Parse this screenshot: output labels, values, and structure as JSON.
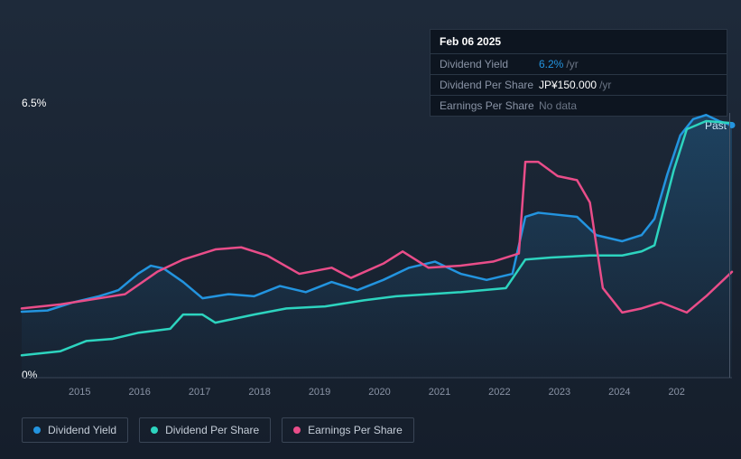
{
  "tooltip": {
    "date": "Feb 06 2025",
    "rows": [
      {
        "label": "Dividend Yield",
        "value": "6.2%",
        "unit": "/yr",
        "color": "blue"
      },
      {
        "label": "Dividend Per Share",
        "value": "JP¥150.000",
        "unit": "/yr",
        "color": "white"
      },
      {
        "label": "Earnings Per Share",
        "value": null,
        "nodata": "No data"
      }
    ]
  },
  "y_axis": {
    "max_label": "6.5%",
    "min_label": "0%",
    "max": 6.5,
    "min": 0
  },
  "past_label": "Past",
  "x_axis": {
    "ticks": [
      "2015",
      "2016",
      "2017",
      "2018",
      "2019",
      "2020",
      "2021",
      "2022",
      "2023",
      "2024",
      "202"
    ]
  },
  "legend": [
    {
      "name": "Dividend Yield",
      "color": "#2394df"
    },
    {
      "name": "Dividend Per Share",
      "color": "#2dd4bf"
    },
    {
      "name": "Earnings Per Share",
      "color": "#e94d89"
    }
  ],
  "chart": {
    "type": "line",
    "background": "#1a2332",
    "grid_color": "#2a3645",
    "line_width": 2.5,
    "xlim": [
      2014.2,
      2025.2
    ],
    "ylim": [
      0,
      6.5
    ],
    "series": {
      "dividend_yield": {
        "color": "#2394df",
        "fill_opacity": 0.15,
        "data": [
          [
            2014.2,
            1.62
          ],
          [
            2014.6,
            1.65
          ],
          [
            2015.0,
            1.85
          ],
          [
            2015.4,
            2.0
          ],
          [
            2015.7,
            2.15
          ],
          [
            2016.0,
            2.55
          ],
          [
            2016.2,
            2.75
          ],
          [
            2016.4,
            2.68
          ],
          [
            2016.7,
            2.35
          ],
          [
            2017.0,
            1.95
          ],
          [
            2017.4,
            2.05
          ],
          [
            2017.8,
            2.0
          ],
          [
            2018.2,
            2.25
          ],
          [
            2018.6,
            2.1
          ],
          [
            2019.0,
            2.35
          ],
          [
            2019.4,
            2.15
          ],
          [
            2019.8,
            2.4
          ],
          [
            2020.2,
            2.7
          ],
          [
            2020.6,
            2.85
          ],
          [
            2021.0,
            2.55
          ],
          [
            2021.4,
            2.4
          ],
          [
            2021.8,
            2.55
          ],
          [
            2022.0,
            3.95
          ],
          [
            2022.2,
            4.05
          ],
          [
            2022.5,
            4.0
          ],
          [
            2022.8,
            3.95
          ],
          [
            2023.1,
            3.5
          ],
          [
            2023.5,
            3.35
          ],
          [
            2023.8,
            3.5
          ],
          [
            2024.0,
            3.9
          ],
          [
            2024.2,
            5.0
          ],
          [
            2024.4,
            5.95
          ],
          [
            2024.6,
            6.35
          ],
          [
            2024.8,
            6.45
          ],
          [
            2025.0,
            6.3
          ],
          [
            2025.2,
            6.2
          ]
        ]
      },
      "dividend_per_share": {
        "color": "#2dd4bf",
        "data": [
          [
            2014.2,
            0.55
          ],
          [
            2014.8,
            0.65
          ],
          [
            2015.2,
            0.9
          ],
          [
            2015.6,
            0.95
          ],
          [
            2016.0,
            1.1
          ],
          [
            2016.5,
            1.2
          ],
          [
            2016.7,
            1.55
          ],
          [
            2017.0,
            1.55
          ],
          [
            2017.2,
            1.35
          ],
          [
            2017.8,
            1.55
          ],
          [
            2018.3,
            1.7
          ],
          [
            2018.9,
            1.75
          ],
          [
            2019.5,
            1.9
          ],
          [
            2020.0,
            2.0
          ],
          [
            2020.5,
            2.05
          ],
          [
            2021.0,
            2.1
          ],
          [
            2021.7,
            2.2
          ],
          [
            2022.0,
            2.9
          ],
          [
            2022.4,
            2.95
          ],
          [
            2023.0,
            3.0
          ],
          [
            2023.5,
            3.0
          ],
          [
            2023.8,
            3.1
          ],
          [
            2024.0,
            3.25
          ],
          [
            2024.3,
            5.1
          ],
          [
            2024.5,
            6.1
          ],
          [
            2024.8,
            6.3
          ],
          [
            2025.2,
            6.25
          ]
        ]
      },
      "earnings_per_share": {
        "color": "#e94d89",
        "data": [
          [
            2014.2,
            1.7
          ],
          [
            2014.8,
            1.8
          ],
          [
            2015.2,
            1.9
          ],
          [
            2015.8,
            2.05
          ],
          [
            2016.3,
            2.6
          ],
          [
            2016.7,
            2.9
          ],
          [
            2017.2,
            3.15
          ],
          [
            2017.6,
            3.2
          ],
          [
            2018.0,
            3.0
          ],
          [
            2018.5,
            2.55
          ],
          [
            2019.0,
            2.7
          ],
          [
            2019.3,
            2.45
          ],
          [
            2019.8,
            2.8
          ],
          [
            2020.1,
            3.1
          ],
          [
            2020.5,
            2.7
          ],
          [
            2021.0,
            2.75
          ],
          [
            2021.5,
            2.85
          ],
          [
            2021.9,
            3.05
          ],
          [
            2022.0,
            5.3
          ],
          [
            2022.2,
            5.3
          ],
          [
            2022.5,
            4.95
          ],
          [
            2022.8,
            4.85
          ],
          [
            2023.0,
            4.3
          ],
          [
            2023.2,
            2.2
          ],
          [
            2023.5,
            1.6
          ],
          [
            2023.8,
            1.7
          ],
          [
            2024.1,
            1.85
          ],
          [
            2024.5,
            1.6
          ],
          [
            2024.8,
            2.0
          ],
          [
            2025.2,
            2.6
          ]
        ]
      }
    }
  }
}
